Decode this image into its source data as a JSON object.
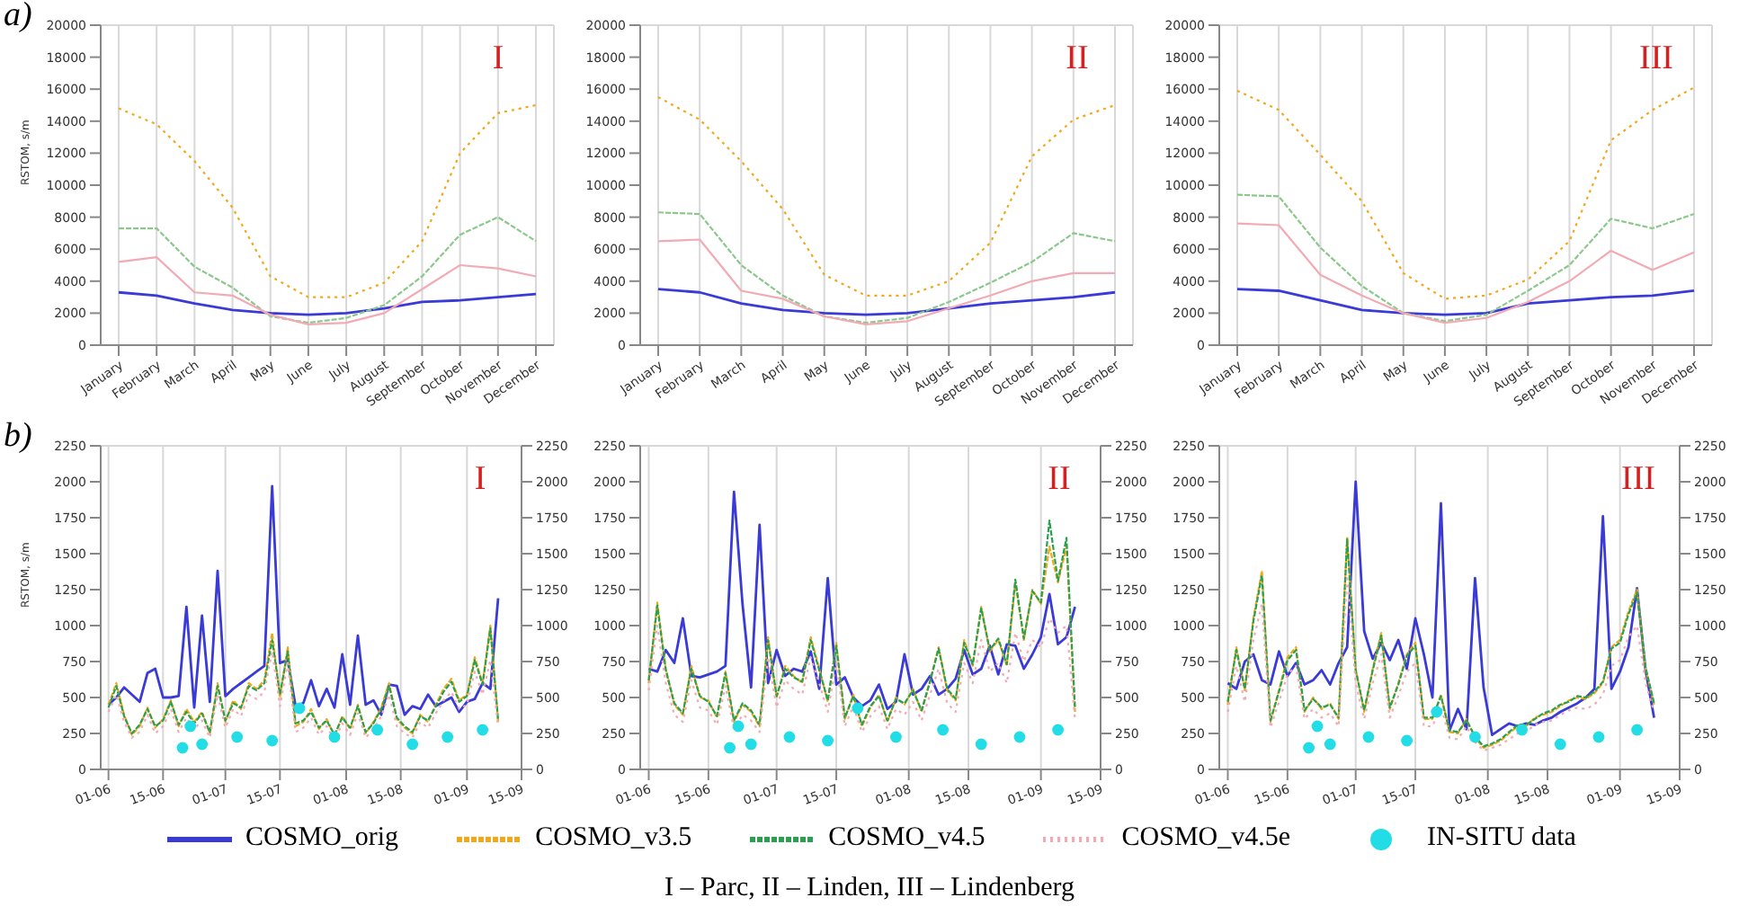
{
  "chart_data": [
    {
      "type": "line",
      "title": "I",
      "ylabel": "RSTOM, s/m",
      "annotations": [
        "a)"
      ],
      "categories": [
        "January",
        "February",
        "March",
        "April",
        "May",
        "June",
        "July",
        "August",
        "September",
        "October",
        "November",
        "December"
      ],
      "ylim": [
        0,
        20000
      ],
      "yticks": [
        0,
        2000,
        4000,
        6000,
        8000,
        10000,
        12000,
        14000,
        16000,
        18000,
        20000
      ],
      "grid": true,
      "series": [
        {
          "color": "#3a3ad6",
          "line_style": "solid",
          "values": [
            3300,
            3100,
            2600,
            2200,
            2000,
            1900,
            2000,
            2300,
            2700,
            2800,
            3000,
            3200
          ]
        },
        {
          "color": "#f0a818",
          "line_style": "dotted",
          "values": [
            14800,
            13800,
            11500,
            8600,
            4300,
            3000,
            3000,
            3900,
            6500,
            12000,
            14500,
            15000
          ]
        },
        {
          "color": "#8cc88c",
          "line_style": "dashed",
          "values": [
            7300,
            7300,
            4900,
            3600,
            1800,
            1400,
            1700,
            2500,
            4300,
            6900,
            8000,
            6500
          ]
        },
        {
          "color": "#f2aab4",
          "line_style": "solid",
          "values": [
            5200,
            5500,
            3300,
            3100,
            1900,
            1300,
            1400,
            2000,
            3500,
            5000,
            4800,
            4300
          ]
        }
      ]
    },
    {
      "type": "line",
      "title": "II",
      "categories": [
        "January",
        "February",
        "March",
        "April",
        "May",
        "June",
        "July",
        "August",
        "September",
        "October",
        "November",
        "December"
      ],
      "ylim": [
        0,
        20000
      ],
      "yticks": [
        0,
        2000,
        4000,
        6000,
        8000,
        10000,
        12000,
        14000,
        16000,
        18000,
        20000
      ],
      "grid": true,
      "series": [
        {
          "color": "#3a3ad6",
          "line_style": "solid",
          "values": [
            3500,
            3300,
            2600,
            2200,
            2000,
            1900,
            2000,
            2300,
            2600,
            2800,
            3000,
            3300
          ]
        },
        {
          "color": "#f0a818",
          "line_style": "dotted",
          "values": [
            15500,
            14100,
            11500,
            8500,
            4400,
            3100,
            3100,
            4000,
            6400,
            11800,
            14100,
            15000
          ]
        },
        {
          "color": "#8cc88c",
          "line_style": "dashed",
          "values": [
            8300,
            8200,
            5000,
            3100,
            1800,
            1400,
            1700,
            2700,
            3900,
            5200,
            7000,
            6500
          ]
        },
        {
          "color": "#f2aab4",
          "line_style": "solid",
          "values": [
            6500,
            6600,
            3400,
            2900,
            1800,
            1300,
            1500,
            2300,
            3100,
            4000,
            4500,
            4500
          ]
        }
      ]
    },
    {
      "type": "line",
      "title": "III",
      "categories": [
        "January",
        "February",
        "March",
        "April",
        "May",
        "June",
        "July",
        "August",
        "September",
        "October",
        "November",
        "December"
      ],
      "ylim": [
        0,
        20000
      ],
      "yticks": [
        0,
        2000,
        4000,
        6000,
        8000,
        10000,
        12000,
        14000,
        16000,
        18000,
        20000
      ],
      "grid": true,
      "series": [
        {
          "color": "#3a3ad6",
          "line_style": "solid",
          "values": [
            3500,
            3400,
            2800,
            2200,
            2000,
            1900,
            2000,
            2600,
            2800,
            3000,
            3100,
            3400
          ]
        },
        {
          "color": "#f0a818",
          "line_style": "dotted",
          "values": [
            15900,
            14700,
            11900,
            9000,
            4500,
            2900,
            3100,
            4100,
            6500,
            12800,
            14700,
            16100
          ]
        },
        {
          "color": "#8cc88c",
          "line_style": "dashed",
          "values": [
            9400,
            9300,
            6100,
            3700,
            2000,
            1500,
            1900,
            3400,
            5000,
            7900,
            7300,
            8200
          ]
        },
        {
          "color": "#f2aab4",
          "line_style": "solid",
          "values": [
            7600,
            7500,
            4400,
            3100,
            2000,
            1400,
            1700,
            2700,
            4000,
            5900,
            4700,
            5800
          ]
        }
      ]
    },
    {
      "type": "line",
      "title": "I",
      "ylabel": "RSTOM, s/m",
      "annotations": [
        "b)"
      ],
      "x": [
        "--06-01",
        "--06-03",
        "--06-05",
        "--06-07",
        "--06-09",
        "--06-11",
        "--06-13",
        "--06-15",
        "--06-17",
        "--06-19",
        "--06-21",
        "--06-23",
        "--06-25",
        "--06-27",
        "--06-29",
        "--07-01",
        "--07-03",
        "--07-05",
        "--07-07",
        "--07-09",
        "--07-11",
        "--07-13",
        "--07-15",
        "--07-17",
        "--07-19",
        "--07-21",
        "--07-23",
        "--07-25",
        "--07-27",
        "--07-29",
        "--07-31",
        "--08-02",
        "--08-04",
        "--08-06",
        "--08-08",
        "--08-10",
        "--08-12",
        "--08-14",
        "--08-16",
        "--08-18",
        "--08-20",
        "--08-22",
        "--08-24",
        "--08-26",
        "--08-28",
        "--08-30",
        "--09-01",
        "--09-03",
        "--09-05",
        "--09-07",
        "--09-09"
      ],
      "xlim": [
        "--05-30",
        "--09-15"
      ],
      "xticks": [
        {
          "value": "--06-01",
          "label": "01-06"
        },
        {
          "value": "--06-15",
          "label": "15-06"
        },
        {
          "value": "--07-01",
          "label": "01-07"
        },
        {
          "value": "--07-15",
          "label": "15-07"
        },
        {
          "value": "--08-01",
          "label": "01-08"
        },
        {
          "value": "--08-15",
          "label": "15-08"
        },
        {
          "value": "--09-01",
          "label": "01-09"
        },
        {
          "value": "--09-15",
          "label": "15-09"
        }
      ],
      "ylim": [
        0,
        2250
      ],
      "yticks": [
        0,
        250,
        500,
        750,
        1000,
        1250,
        1500,
        1750,
        2000,
        2250
      ],
      "y2lim": [
        0,
        2250
      ],
      "y2ticks": [
        0,
        250,
        500,
        750,
        1000,
        1250,
        1500,
        1750,
        2000,
        2250
      ],
      "grid": true,
      "series": [
        {
          "color": "#3a3ad6",
          "line_style": "solid",
          "values": [
            450,
            500,
            570,
            520,
            470,
            670,
            700,
            500,
            500,
            510,
            1130,
            430,
            1070,
            470,
            1380,
            510,
            560,
            600,
            640,
            680,
            720,
            1970,
            740,
            760,
            440,
            460,
            620,
            440,
            560,
            430,
            800,
            450,
            930,
            450,
            480,
            380,
            590,
            580,
            380,
            440,
            420,
            520,
            440,
            470,
            500,
            400,
            470,
            490,
            600,
            560,
            1190
          ]
        },
        {
          "color": "#f0a818",
          "line_style": "dashed",
          "values": [
            450,
            600,
            380,
            240,
            300,
            430,
            290,
            350,
            480,
            300,
            420,
            330,
            400,
            250,
            600,
            330,
            480,
            420,
            600,
            560,
            620,
            950,
            500,
            850,
            300,
            330,
            420,
            280,
            350,
            230,
            370,
            280,
            450,
            250,
            330,
            430,
            600,
            350,
            290,
            250,
            380,
            330,
            450,
            560,
            630,
            480,
            520,
            780,
            600,
            1000,
            330
          ]
        },
        {
          "color": "#28a050",
          "line_style": "dashed",
          "values": [
            430,
            580,
            370,
            250,
            310,
            420,
            300,
            340,
            470,
            310,
            400,
            320,
            390,
            260,
            580,
            340,
            460,
            430,
            580,
            550,
            600,
            900,
            520,
            820,
            320,
            340,
            400,
            290,
            340,
            240,
            360,
            290,
            440,
            260,
            320,
            420,
            580,
            360,
            300,
            260,
            370,
            340,
            440,
            540,
            610,
            470,
            510,
            760,
            590,
            980,
            340
          ]
        },
        {
          "color": "#f2aab4",
          "line_style": "dotted",
          "values": [
            400,
            520,
            330,
            220,
            260,
            380,
            250,
            300,
            420,
            260,
            360,
            280,
            340,
            220,
            520,
            290,
            420,
            370,
            520,
            490,
            540,
            820,
            440,
            740,
            260,
            290,
            360,
            240,
            300,
            200,
            320,
            240,
            390,
            220,
            280,
            370,
            520,
            300,
            250,
            220,
            330,
            290,
            390,
            480,
            540,
            420,
            450,
            680,
            520,
            760,
            300
          ]
        },
        {
          "type": "scatter",
          "marker": "circle",
          "color": "#22dde6",
          "x": [
            "--06-20",
            "--06-22",
            "--06-25",
            "--07-04",
            "--07-13",
            "--07-20",
            "--07-29",
            "--08-09",
            "--08-18",
            "--08-27",
            "--09-05"
          ],
          "values": [
            150,
            300,
            175,
            225,
            200,
            425,
            225,
            275,
            175,
            225,
            275
          ]
        }
      ]
    },
    {
      "type": "line",
      "title": "II",
      "x": [
        "--06-01",
        "--06-03",
        "--06-05",
        "--06-07",
        "--06-09",
        "--06-11",
        "--06-13",
        "--06-15",
        "--06-17",
        "--06-19",
        "--06-21",
        "--06-23",
        "--06-25",
        "--06-27",
        "--06-29",
        "--07-01",
        "--07-03",
        "--07-05",
        "--07-07",
        "--07-09",
        "--07-11",
        "--07-13",
        "--07-15",
        "--07-17",
        "--07-19",
        "--07-21",
        "--07-23",
        "--07-25",
        "--07-27",
        "--07-29",
        "--07-31",
        "--08-02",
        "--08-04",
        "--08-06",
        "--08-08",
        "--08-10",
        "--08-12",
        "--08-14",
        "--08-16",
        "--08-18",
        "--08-20",
        "--08-22",
        "--08-24",
        "--08-26",
        "--08-28",
        "--08-30",
        "--09-01",
        "--09-03",
        "--09-05",
        "--09-07",
        "--09-09"
      ],
      "xlim": [
        "--05-30",
        "--09-15"
      ],
      "xticks": [
        {
          "value": "--06-01",
          "label": "01-06"
        },
        {
          "value": "--06-15",
          "label": "15-06"
        },
        {
          "value": "--07-01",
          "label": "01-07"
        },
        {
          "value": "--07-15",
          "label": "15-07"
        },
        {
          "value": "--08-01",
          "label": "01-08"
        },
        {
          "value": "--08-15",
          "label": "15-08"
        },
        {
          "value": "--09-01",
          "label": "01-09"
        },
        {
          "value": "--09-15",
          "label": "15-09"
        }
      ],
      "ylim": [
        0,
        2250
      ],
      "yticks": [
        0,
        250,
        500,
        750,
        1000,
        1250,
        1500,
        1750,
        2000,
        2250
      ],
      "y2lim": [
        0,
        2250
      ],
      "y2ticks": [
        0,
        250,
        500,
        750,
        1000,
        1250,
        1500,
        1750,
        2000,
        2250
      ],
      "grid": true,
      "series": [
        {
          "color": "#3a3ad6",
          "line_style": "solid",
          "values": [
            700,
            680,
            830,
            740,
            1050,
            650,
            640,
            660,
            680,
            720,
            1930,
            1150,
            570,
            1700,
            600,
            830,
            650,
            700,
            680,
            820,
            560,
            1330,
            590,
            640,
            500,
            440,
            480,
            590,
            420,
            470,
            800,
            520,
            560,
            650,
            520,
            560,
            630,
            830,
            660,
            700,
            860,
            660,
            870,
            860,
            700,
            800,
            920,
            1220,
            870,
            920,
            1130
          ]
        },
        {
          "color": "#f0a818",
          "line_style": "dashed",
          "values": [
            600,
            1160,
            700,
            450,
            380,
            720,
            500,
            480,
            360,
            680,
            330,
            450,
            400,
            300,
            920,
            500,
            720,
            650,
            600,
            920,
            700,
            470,
            880,
            350,
            520,
            300,
            430,
            520,
            330,
            500,
            450,
            560,
            400,
            620,
            850,
            550,
            480,
            900,
            720,
            1130,
            820,
            900,
            720,
            1300,
            900,
            1250,
            1150,
            1550,
            1300,
            1550,
            400
          ]
        },
        {
          "color": "#28a050",
          "line_style": "dashed",
          "values": [
            620,
            1140,
            690,
            460,
            390,
            700,
            510,
            470,
            370,
            670,
            340,
            460,
            410,
            310,
            900,
            510,
            700,
            640,
            610,
            900,
            690,
            480,
            860,
            360,
            510,
            310,
            440,
            510,
            340,
            490,
            460,
            550,
            410,
            610,
            840,
            560,
            490,
            880,
            730,
            1120,
            830,
            910,
            730,
            1320,
            910,
            1240,
            1160,
            1730,
            1310,
            1610,
            420
          ]
        },
        {
          "color": "#f2aab4",
          "line_style": "dotted",
          "values": [
            550,
            1000,
            600,
            380,
            330,
            620,
            430,
            410,
            310,
            580,
            280,
            380,
            340,
            260,
            780,
            430,
            620,
            560,
            520,
            780,
            600,
            400,
            740,
            300,
            440,
            260,
            370,
            440,
            280,
            420,
            380,
            470,
            340,
            520,
            700,
            460,
            400,
            740,
            600,
            900,
            680,
            740,
            600,
            950,
            750,
            900,
            850,
            1050,
            950,
            1000,
            350
          ]
        },
        {
          "type": "scatter",
          "marker": "circle",
          "color": "#22dde6",
          "x": [
            "--06-20",
            "--06-22",
            "--06-25",
            "--07-04",
            "--07-13",
            "--07-20",
            "--07-29",
            "--08-09",
            "--08-18",
            "--08-27",
            "--09-05"
          ],
          "values": [
            150,
            300,
            175,
            225,
            200,
            425,
            225,
            275,
            175,
            225,
            275
          ]
        }
      ]
    },
    {
      "type": "line",
      "title": "III",
      "annotations": [
        "I – Parc, II – Linden, III – Lindenberg"
      ],
      "legend": "bottom",
      "x": [
        "--06-01",
        "--06-03",
        "--06-05",
        "--06-07",
        "--06-09",
        "--06-11",
        "--06-13",
        "--06-15",
        "--06-17",
        "--06-19",
        "--06-21",
        "--06-23",
        "--06-25",
        "--06-27",
        "--06-29",
        "--07-01",
        "--07-03",
        "--07-05",
        "--07-07",
        "--07-09",
        "--07-11",
        "--07-13",
        "--07-15",
        "--07-17",
        "--07-19",
        "--07-21",
        "--07-23",
        "--07-25",
        "--07-27",
        "--07-29",
        "--07-31",
        "--08-02",
        "--08-04",
        "--08-06",
        "--08-08",
        "--08-10",
        "--08-12",
        "--08-14",
        "--08-16",
        "--08-18",
        "--08-20",
        "--08-22",
        "--08-24",
        "--08-26",
        "--08-28",
        "--08-30",
        "--09-01",
        "--09-03",
        "--09-05",
        "--09-07",
        "--09-09"
      ],
      "xlim": [
        "--05-30",
        "--09-15"
      ],
      "xticks": [
        {
          "value": "--06-01",
          "label": "01-06"
        },
        {
          "value": "--06-15",
          "label": "15-06"
        },
        {
          "value": "--07-01",
          "label": "01-07"
        },
        {
          "value": "--07-15",
          "label": "15-07"
        },
        {
          "value": "--08-01",
          "label": "01-08"
        },
        {
          "value": "--08-15",
          "label": "15-08"
        },
        {
          "value": "--09-01",
          "label": "01-09"
        },
        {
          "value": "--09-15",
          "label": "15-09"
        }
      ],
      "ylim": [
        0,
        2250
      ],
      "yticks": [
        0,
        250,
        500,
        750,
        1000,
        1250,
        1500,
        1750,
        2000,
        2250
      ],
      "y2lim": [
        0,
        2250
      ],
      "y2ticks": [
        0,
        250,
        500,
        750,
        1000,
        1250,
        1500,
        1750,
        2000,
        2250
      ],
      "grid": true,
      "series": [
        {
          "name": "COSMO_orig",
          "color": "#3a3ad6",
          "line_style": "solid",
          "values": [
            600,
            560,
            750,
            800,
            620,
            590,
            820,
            650,
            740,
            590,
            620,
            690,
            590,
            740,
            850,
            2000,
            960,
            770,
            880,
            760,
            900,
            700,
            1050,
            800,
            500,
            1850,
            270,
            420,
            280,
            1330,
            570,
            240,
            280,
            320,
            300,
            320,
            310,
            340,
            360,
            400,
            430,
            460,
            500,
            560,
            1760,
            560,
            680,
            850,
            1260,
            690,
            360
          ]
        },
        {
          "name": "COSMO_v3.5",
          "color": "#f0a818",
          "line_style": "dashed",
          "values": [
            450,
            850,
            550,
            1050,
            1380,
            330,
            550,
            780,
            850,
            400,
            500,
            420,
            460,
            350,
            1620,
            700,
            400,
            700,
            950,
            420,
            600,
            800,
            880,
            350,
            350,
            520,
            260,
            250,
            350,
            220,
            150,
            170,
            200,
            250,
            300,
            300,
            360,
            380,
            400,
            440,
            480,
            500,
            490,
            530,
            600,
            850,
            900,
            1100,
            1250,
            700,
            450
          ]
        },
        {
          "name": "COSMO_v4.5",
          "color": "#28a050",
          "line_style": "dashed",
          "values": [
            470,
            830,
            560,
            1030,
            1350,
            340,
            540,
            760,
            830,
            410,
            490,
            430,
            450,
            360,
            1600,
            690,
            410,
            690,
            930,
            430,
            590,
            790,
            860,
            360,
            360,
            510,
            270,
            260,
            340,
            230,
            160,
            180,
            210,
            260,
            310,
            310,
            350,
            390,
            410,
            450,
            470,
            510,
            500,
            540,
            610,
            840,
            880,
            1080,
            1230,
            710,
            460
          ]
        },
        {
          "name": "COSMO_v4.5e",
          "color": "#f2aab4",
          "line_style": "dotted",
          "values": [
            400,
            720,
            470,
            900,
            1150,
            290,
            470,
            660,
            720,
            350,
            420,
            360,
            390,
            300,
            1350,
            600,
            350,
            600,
            800,
            360,
            510,
            680,
            740,
            300,
            300,
            440,
            220,
            210,
            300,
            190,
            130,
            150,
            170,
            210,
            250,
            260,
            310,
            330,
            340,
            380,
            410,
            430,
            420,
            450,
            520,
            720,
            760,
            920,
            1000,
            600,
            400
          ]
        },
        {
          "name": "IN-SITU data",
          "type": "scatter",
          "marker": "circle",
          "color": "#22dde6",
          "x": [
            "--06-20",
            "--06-22",
            "--06-25",
            "--07-04",
            "--07-13",
            "--07-20",
            "--07-29",
            "--08-09",
            "--08-18",
            "--08-27",
            "--09-05"
          ],
          "values": [
            150,
            300,
            175,
            225,
            200,
            400,
            225,
            275,
            175,
            225,
            275
          ]
        }
      ]
    }
  ]
}
